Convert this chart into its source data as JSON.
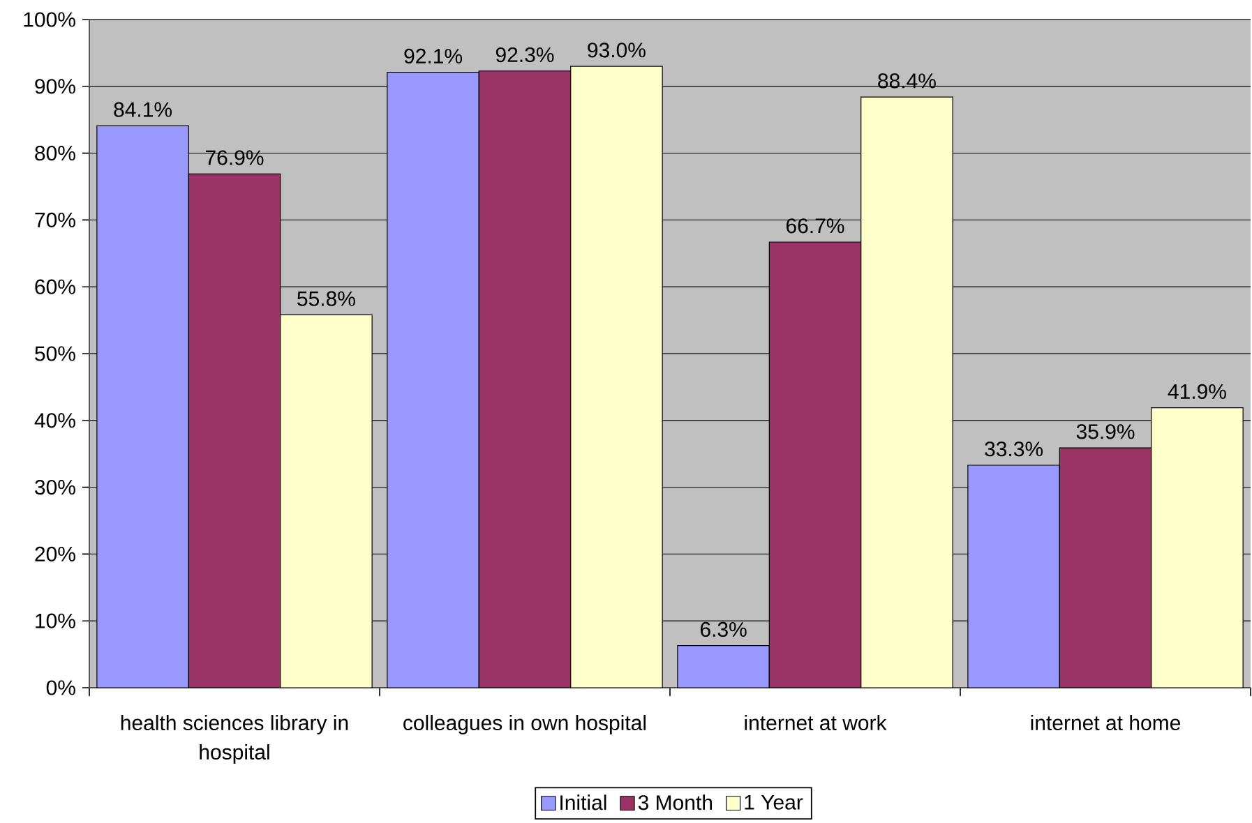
{
  "chart_data": {
    "type": "bar",
    "categories": [
      "health sciences library in hospital",
      "colleagues in own hospital",
      "internet at work",
      "internet at home"
    ],
    "series": [
      {
        "name": "Initial",
        "color": "#9999ff",
        "values": [
          84.1,
          92.1,
          6.3,
          33.3
        ],
        "value_labels": [
          "84.1%",
          "92.1%",
          "6.3%",
          "33.3%"
        ]
      },
      {
        "name": "3 Month",
        "color": "#993366",
        "values": [
          76.9,
          92.3,
          66.7,
          35.9
        ],
        "value_labels": [
          "76.9%",
          "92.3%",
          "66.7%",
          "35.9%"
        ]
      },
      {
        "name": "1 Year",
        "color": "#ffffcc",
        "values": [
          55.8,
          93.0,
          88.4,
          41.9
        ],
        "value_labels": [
          "55.8%",
          "93.0%",
          "88.4%",
          "41.9%"
        ]
      }
    ],
    "ylim": [
      0,
      100
    ],
    "yticks": [
      {
        "value": 0,
        "label": "0%"
      },
      {
        "value": 10,
        "label": "10%"
      },
      {
        "value": 20,
        "label": "20%"
      },
      {
        "value": 30,
        "label": "30%"
      },
      {
        "value": 40,
        "label": "40%"
      },
      {
        "value": 50,
        "label": "50%"
      },
      {
        "value": 60,
        "label": "60%"
      },
      {
        "value": 70,
        "label": "70%"
      },
      {
        "value": 80,
        "label": "80%"
      },
      {
        "value": 90,
        "label": "90%"
      },
      {
        "value": 100,
        "label": "100%"
      }
    ],
    "grid": "y",
    "legend": "bottom"
  }
}
